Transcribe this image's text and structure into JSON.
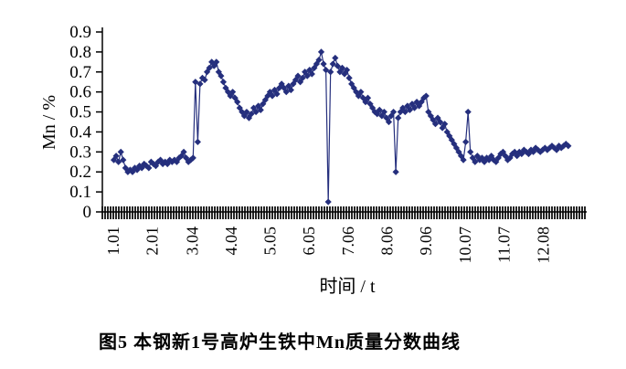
{
  "figure_caption": "图5  本钢新1号高炉生铁中Mn质量分数曲线",
  "chart_data": {
    "type": "line",
    "title": "",
    "xlabel": "时间 / t",
    "ylabel": "Mn / %",
    "ylim": [
      0,
      0.9
    ],
    "grid": false,
    "legend": false,
    "marker": "diamond",
    "axis_color": "#000000",
    "y_tick_labels": [
      "0",
      "0.1",
      "0.2",
      "0.3",
      "0.4",
      "0.5",
      "0.6",
      "0.7",
      "0.8",
      "0.9"
    ],
    "x_tick_labels": [
      "1.01",
      "2.01",
      "3.04",
      "4.04",
      "5.05",
      "6.05",
      "7.06",
      "8.06",
      "9.06",
      "10.07",
      "11.07",
      "12.08"
    ],
    "series": [
      {
        "name": "Mn",
        "color": "#252f7d",
        "points": [
          [
            1.0,
            0.26
          ],
          [
            1.06,
            0.28
          ],
          [
            1.12,
            0.25
          ],
          [
            1.18,
            0.3
          ],
          [
            1.24,
            0.26
          ],
          [
            1.3,
            0.22
          ],
          [
            1.36,
            0.2
          ],
          [
            1.42,
            0.21
          ],
          [
            1.48,
            0.2
          ],
          [
            1.54,
            0.22
          ],
          [
            1.6,
            0.21
          ],
          [
            1.66,
            0.23
          ],
          [
            1.72,
            0.22
          ],
          [
            1.78,
            0.24
          ],
          [
            1.84,
            0.23
          ],
          [
            1.9,
            0.22
          ],
          [
            1.96,
            0.25
          ],
          [
            2.02,
            0.24
          ],
          [
            2.08,
            0.23
          ],
          [
            2.14,
            0.25
          ],
          [
            2.2,
            0.26
          ],
          [
            2.26,
            0.24
          ],
          [
            2.32,
            0.25
          ],
          [
            2.38,
            0.24
          ],
          [
            2.44,
            0.26
          ],
          [
            2.5,
            0.25
          ],
          [
            2.56,
            0.26
          ],
          [
            2.62,
            0.25
          ],
          [
            2.68,
            0.27
          ],
          [
            2.74,
            0.28
          ],
          [
            2.8,
            0.3
          ],
          [
            2.86,
            0.27
          ],
          [
            2.92,
            0.25
          ],
          [
            2.98,
            0.26
          ],
          [
            3.04,
            0.27
          ],
          [
            3.1,
            0.65
          ],
          [
            3.16,
            0.35
          ],
          [
            3.22,
            0.64
          ],
          [
            3.28,
            0.67
          ],
          [
            3.34,
            0.66
          ],
          [
            3.4,
            0.7
          ],
          [
            3.46,
            0.72
          ],
          [
            3.52,
            0.75
          ],
          [
            3.58,
            0.73
          ],
          [
            3.64,
            0.75
          ],
          [
            3.7,
            0.7
          ],
          [
            3.76,
            0.68
          ],
          [
            3.82,
            0.65
          ],
          [
            3.88,
            0.62
          ],
          [
            3.94,
            0.6
          ],
          [
            4.0,
            0.58
          ],
          [
            4.06,
            0.6
          ],
          [
            4.12,
            0.57
          ],
          [
            4.18,
            0.55
          ],
          [
            4.24,
            0.52
          ],
          [
            4.3,
            0.5
          ],
          [
            4.36,
            0.48
          ],
          [
            4.42,
            0.5
          ],
          [
            4.48,
            0.47
          ],
          [
            4.54,
            0.49
          ],
          [
            4.6,
            0.52
          ],
          [
            4.66,
            0.5
          ],
          [
            4.72,
            0.53
          ],
          [
            4.78,
            0.51
          ],
          [
            4.84,
            0.54
          ],
          [
            4.9,
            0.56
          ],
          [
            4.96,
            0.58
          ],
          [
            5.02,
            0.6
          ],
          [
            5.08,
            0.58
          ],
          [
            5.14,
            0.61
          ],
          [
            5.2,
            0.59
          ],
          [
            5.26,
            0.62
          ],
          [
            5.32,
            0.64
          ],
          [
            5.38,
            0.62
          ],
          [
            5.44,
            0.6
          ],
          [
            5.5,
            0.63
          ],
          [
            5.56,
            0.61
          ],
          [
            5.62,
            0.64
          ],
          [
            5.68,
            0.66
          ],
          [
            5.74,
            0.68
          ],
          [
            5.8,
            0.65
          ],
          [
            5.86,
            0.67
          ],
          [
            5.92,
            0.7
          ],
          [
            5.98,
            0.68
          ],
          [
            6.04,
            0.71
          ],
          [
            6.1,
            0.69
          ],
          [
            6.16,
            0.72
          ],
          [
            6.22,
            0.74
          ],
          [
            6.28,
            0.76
          ],
          [
            6.34,
            0.8
          ],
          [
            6.4,
            0.74
          ],
          [
            6.46,
            0.71
          ],
          [
            6.52,
            0.05
          ],
          [
            6.58,
            0.7
          ],
          [
            6.64,
            0.74
          ],
          [
            6.7,
            0.77
          ],
          [
            6.76,
            0.73
          ],
          [
            6.82,
            0.7
          ],
          [
            6.88,
            0.72
          ],
          [
            6.94,
            0.69
          ],
          [
            7.0,
            0.71
          ],
          [
            7.06,
            0.67
          ],
          [
            7.12,
            0.64
          ],
          [
            7.18,
            0.62
          ],
          [
            7.24,
            0.6
          ],
          [
            7.3,
            0.58
          ],
          [
            7.36,
            0.6
          ],
          [
            7.42,
            0.57
          ],
          [
            7.48,
            0.55
          ],
          [
            7.54,
            0.57
          ],
          [
            7.6,
            0.54
          ],
          [
            7.66,
            0.52
          ],
          [
            7.72,
            0.5
          ],
          [
            7.78,
            0.49
          ],
          [
            7.84,
            0.51
          ],
          [
            7.9,
            0.48
          ],
          [
            7.96,
            0.5
          ],
          [
            8.02,
            0.47
          ],
          [
            8.08,
            0.45
          ],
          [
            8.14,
            0.48
          ],
          [
            8.2,
            0.5
          ],
          [
            8.26,
            0.2
          ],
          [
            8.32,
            0.47
          ],
          [
            8.38,
            0.5
          ],
          [
            8.44,
            0.52
          ],
          [
            8.5,
            0.5
          ],
          [
            8.56,
            0.53
          ],
          [
            8.62,
            0.51
          ],
          [
            8.68,
            0.54
          ],
          [
            8.74,
            0.52
          ],
          [
            8.8,
            0.55
          ],
          [
            8.86,
            0.53
          ],
          [
            8.92,
            0.55
          ],
          [
            8.98,
            0.57
          ],
          [
            9.04,
            0.58
          ],
          [
            9.1,
            0.5
          ],
          [
            9.16,
            0.48
          ],
          [
            9.22,
            0.46
          ],
          [
            9.28,
            0.44
          ],
          [
            9.34,
            0.47
          ],
          [
            9.4,
            0.45
          ],
          [
            9.46,
            0.42
          ],
          [
            9.52,
            0.44
          ],
          [
            9.58,
            0.4
          ],
          [
            9.64,
            0.38
          ],
          [
            9.7,
            0.36
          ],
          [
            9.76,
            0.34
          ],
          [
            9.82,
            0.32
          ],
          [
            9.88,
            0.3
          ],
          [
            9.94,
            0.28
          ],
          [
            10.0,
            0.26
          ],
          [
            10.06,
            0.35
          ],
          [
            10.12,
            0.5
          ],
          [
            10.18,
            0.3
          ],
          [
            10.24,
            0.27
          ],
          [
            10.3,
            0.25
          ],
          [
            10.36,
            0.28
          ],
          [
            10.42,
            0.26
          ],
          [
            10.48,
            0.27
          ],
          [
            10.54,
            0.25
          ],
          [
            10.6,
            0.27
          ],
          [
            10.66,
            0.26
          ],
          [
            10.72,
            0.28
          ],
          [
            10.78,
            0.26
          ],
          [
            10.84,
            0.25
          ],
          [
            10.9,
            0.27
          ],
          [
            10.96,
            0.29
          ],
          [
            11.02,
            0.3
          ],
          [
            11.08,
            0.28
          ],
          [
            11.14,
            0.26
          ],
          [
            11.2,
            0.27
          ],
          [
            11.26,
            0.29
          ],
          [
            11.32,
            0.3
          ],
          [
            11.38,
            0.28
          ],
          [
            11.44,
            0.3
          ],
          [
            11.5,
            0.29
          ],
          [
            11.56,
            0.31
          ],
          [
            11.62,
            0.3
          ],
          [
            11.68,
            0.29
          ],
          [
            11.74,
            0.31
          ],
          [
            11.8,
            0.3
          ],
          [
            11.86,
            0.32
          ],
          [
            11.92,
            0.31
          ],
          [
            11.98,
            0.3
          ],
          [
            12.04,
            0.31
          ],
          [
            12.1,
            0.32
          ],
          [
            12.16,
            0.31
          ],
          [
            12.22,
            0.32
          ],
          [
            12.28,
            0.33
          ],
          [
            12.34,
            0.32
          ],
          [
            12.4,
            0.31
          ],
          [
            12.46,
            0.33
          ],
          [
            12.52,
            0.32
          ],
          [
            12.58,
            0.33
          ],
          [
            12.64,
            0.34
          ],
          [
            12.7,
            0.33
          ]
        ]
      }
    ]
  }
}
